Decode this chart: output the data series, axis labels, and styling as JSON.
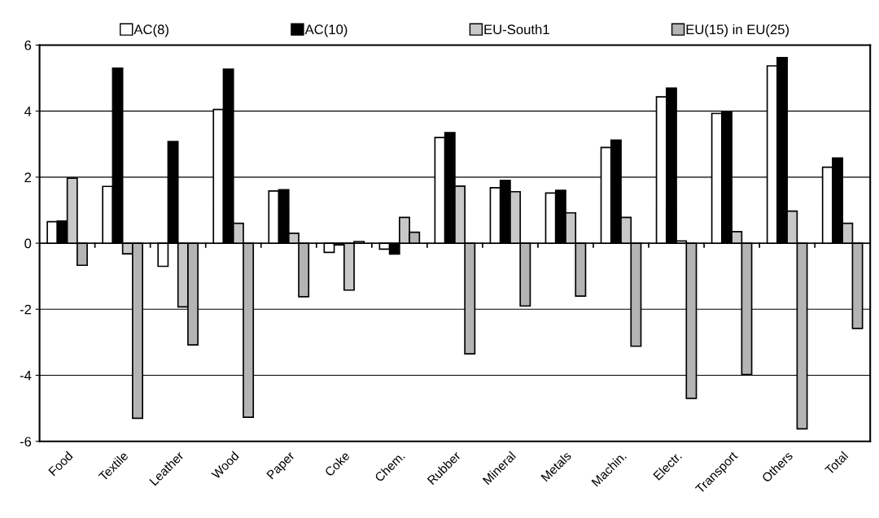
{
  "chart_data": {
    "type": "bar",
    "categories": [
      "Food",
      "Textile",
      "Leather",
      "Wood",
      "Paper",
      "Coke",
      "Chem.",
      "Rubber",
      "Mineral",
      "Metals",
      "Machin.",
      "Electr.",
      "Transport",
      "Others",
      "Total"
    ],
    "series": [
      {
        "name": "AC(8)",
        "color": "#ffffff",
        "values": [
          0.65,
          1.72,
          -0.7,
          4.05,
          1.58,
          -0.28,
          -0.18,
          3.2,
          1.68,
          1.52,
          2.9,
          4.43,
          3.93,
          5.37,
          2.3
        ]
      },
      {
        "name": "AC(10)",
        "color": "#000000",
        "values": [
          0.67,
          5.3,
          3.08,
          5.27,
          1.62,
          -0.05,
          -0.33,
          3.35,
          1.9,
          1.6,
          3.12,
          4.7,
          3.98,
          5.62,
          2.58
        ]
      },
      {
        "name": "EU-South1",
        "color": "#c8c8c8",
        "values": [
          1.97,
          -0.32,
          -1.93,
          0.6,
          0.3,
          -1.42,
          0.78,
          1.73,
          1.56,
          0.92,
          0.78,
          0.07,
          0.35,
          0.97,
          0.6
        ]
      },
      {
        "name": "EU(15) in EU(25)",
        "color": "#b4b4b4",
        "values": [
          -0.67,
          -5.3,
          -3.08,
          -5.27,
          -1.62,
          0.05,
          0.33,
          -3.35,
          -1.9,
          -1.6,
          -3.12,
          -4.7,
          -3.98,
          -5.62,
          -2.58
        ]
      }
    ],
    "ylim": [
      -6,
      6
    ],
    "yticks": [
      {
        "value": -6,
        "label": "-6"
      },
      {
        "value": -4,
        "label": "-4"
      },
      {
        "value": -2,
        "label": "-2"
      },
      0,
      2,
      4,
      6
    ],
    "grid": "y",
    "legend": "top"
  }
}
